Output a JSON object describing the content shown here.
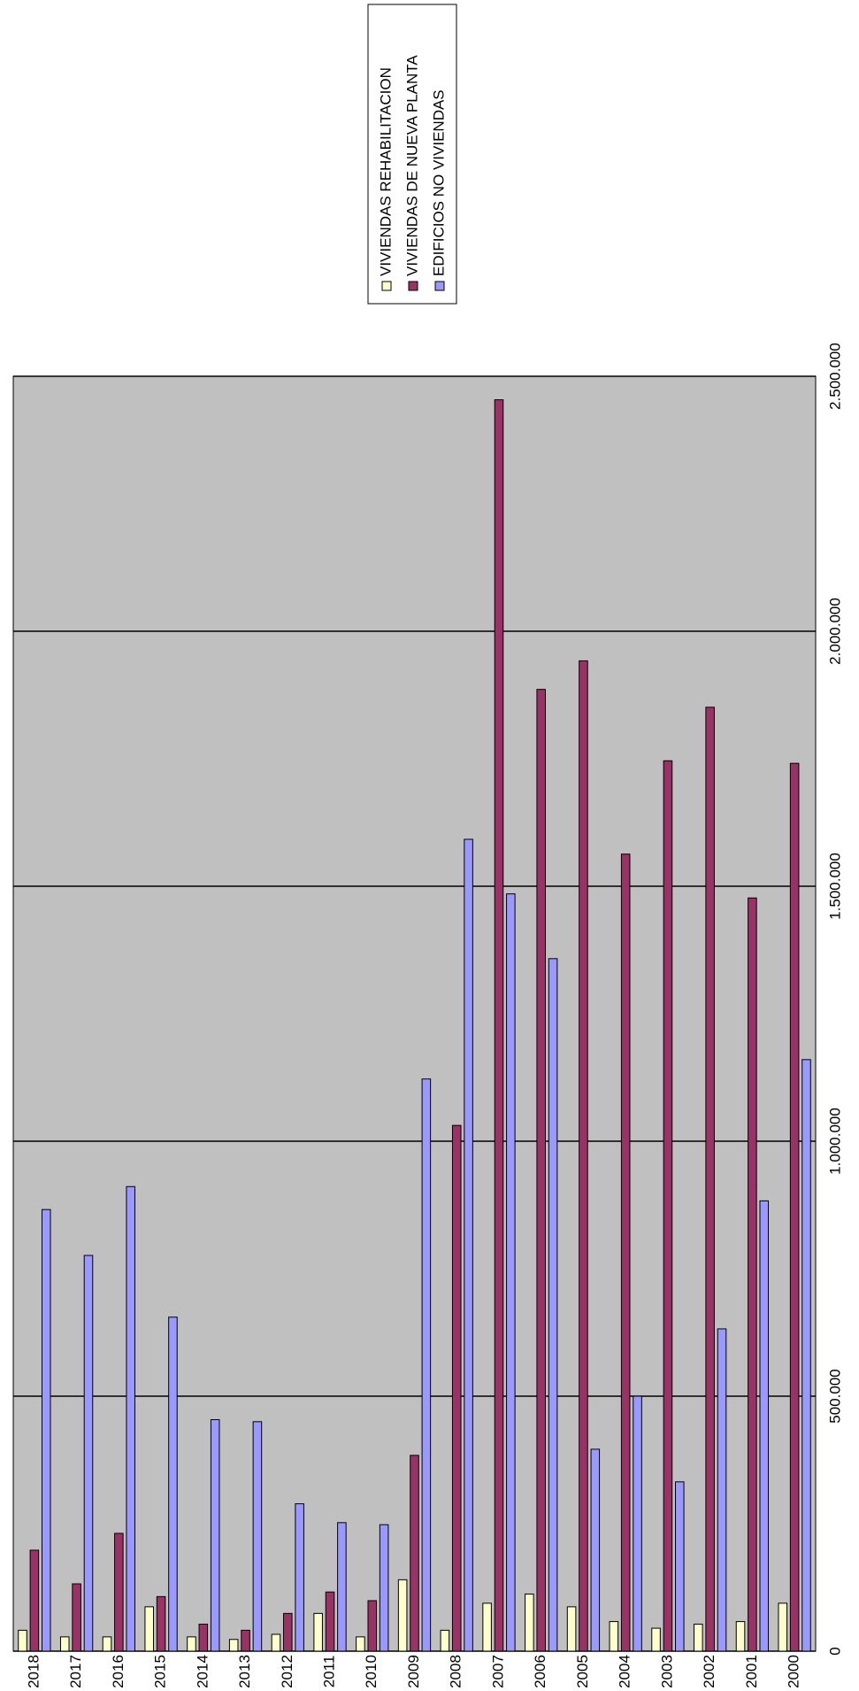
{
  "chart_data": {
    "type": "bar",
    "categories": [
      "2018",
      "2017",
      "2016",
      "2015",
      "2014",
      "2013",
      "2012",
      "2011",
      "2010",
      "2009",
      "2008",
      "2007",
      "2006",
      "2005",
      "2004",
      "2003",
      "2002",
      "2001",
      "2000"
    ],
    "series": [
      {
        "name": "VIVIENDAS REHABILITACION",
        "color": "#ffffcc",
        "values": [
          41000,
          28000,
          28000,
          87000,
          28000,
          23000,
          33000,
          74000,
          28000,
          140000,
          41000,
          94000,
          112000,
          87000,
          58000,
          45000,
          53000,
          58000,
          94000
        ]
      },
      {
        "name": "VIVIENDAS DE NUEVA PLANTA",
        "color": "#993366",
        "values": [
          198000,
          132000,
          231000,
          107000,
          53000,
          41000,
          74000,
          116000,
          99000,
          384000,
          1031000,
          2454000,
          1886000,
          1942000,
          1563000,
          1746000,
          1851000,
          1477000,
          1741000
        ]
      },
      {
        "name": "EDIFICIOS NO VIVIENDAS",
        "color": "#9999ff",
        "values": [
          866000,
          776000,
          911000,
          655000,
          454000,
          450000,
          289000,
          252000,
          248000,
          1122000,
          1592000,
          1485000,
          1358000,
          396000,
          500000,
          332000,
          632000,
          883000,
          1160000
        ]
      }
    ],
    "ylim": [
      0,
      2500000
    ],
    "yticks": [
      0,
      {
        "value": 500000,
        "label": "500.000"
      },
      {
        "value": 1000000,
        "label": "1.000.000"
      },
      {
        "value": 1500000,
        "label": "1.500.000"
      },
      {
        "value": 2000000,
        "label": "2.000.000"
      },
      {
        "value": 2500000,
        "label": "2.500.000"
      }
    ],
    "grid": true
  }
}
